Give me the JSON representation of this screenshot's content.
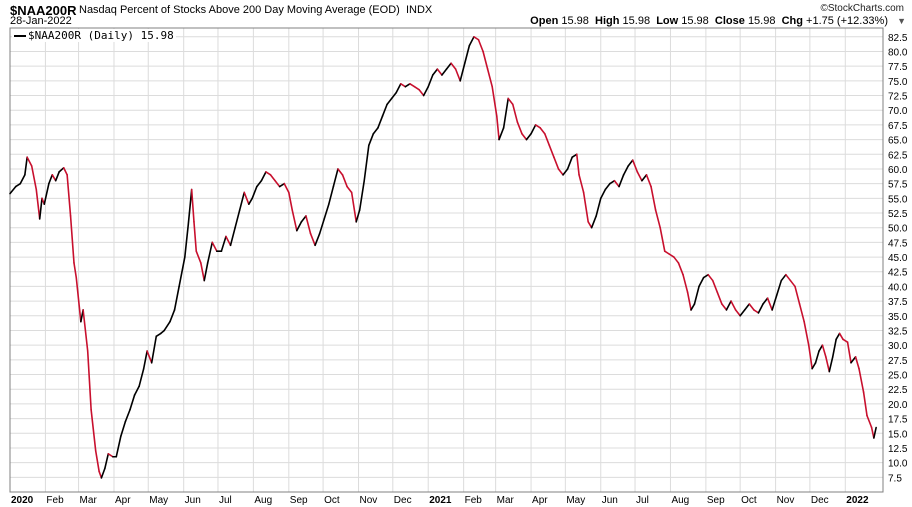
{
  "header": {
    "symbol": "$NAA200R",
    "description": "Nasdaq Percent of Stocks Above 200 Day Moving Average (EOD)",
    "exchange": "INDX",
    "date": "28-Jan-2022",
    "brand": "©StockCharts.com",
    "open_label": "Open",
    "open": "15.98",
    "high_label": "High",
    "high": "15.98",
    "low_label": "Low",
    "low": "15.98",
    "close_label": "Close",
    "close": "15.98",
    "chg_label": "Chg",
    "chg": "+1.75 (+12.33%)"
  },
  "legend": {
    "label": "$NAA200R (Daily) 15.98"
  },
  "chart_data": {
    "type": "line",
    "title": "$NAA200R Nasdaq Percent of Stocks Above 200 Day Moving Average (EOD) INDX",
    "y_axis_side": "right",
    "ylim": [
      5,
      84
    ],
    "yticks": [
      7.5,
      10,
      12.5,
      15,
      17.5,
      20,
      22.5,
      25,
      27.5,
      30,
      32.5,
      35,
      37.5,
      40,
      42.5,
      45,
      47.5,
      50,
      52.5,
      55,
      57.5,
      60,
      62.5,
      65,
      67.5,
      70,
      72.5,
      75,
      77.5,
      80,
      82.5
    ],
    "xlim": [
      "2020-01-01",
      "2022-02-03"
    ],
    "xticks": [
      {
        "date": "2020-01-01",
        "label": "2020",
        "bold": true
      },
      {
        "date": "2020-02-01",
        "label": "Feb"
      },
      {
        "date": "2020-03-01",
        "label": "Mar"
      },
      {
        "date": "2020-04-01",
        "label": "Apr"
      },
      {
        "date": "2020-05-01",
        "label": "May"
      },
      {
        "date": "2020-06-01",
        "label": "Jun"
      },
      {
        "date": "2020-07-01",
        "label": "Jul"
      },
      {
        "date": "2020-08-01",
        "label": "Aug"
      },
      {
        "date": "2020-09-01",
        "label": "Sep"
      },
      {
        "date": "2020-10-01",
        "label": "Oct"
      },
      {
        "date": "2020-11-01",
        "label": "Nov"
      },
      {
        "date": "2020-12-01",
        "label": "Dec"
      },
      {
        "date": "2021-01-01",
        "label": "2021",
        "bold": true
      },
      {
        "date": "2021-02-01",
        "label": "Feb"
      },
      {
        "date": "2021-03-01",
        "label": "Mar"
      },
      {
        "date": "2021-04-01",
        "label": "Apr"
      },
      {
        "date": "2021-05-01",
        "label": "May"
      },
      {
        "date": "2021-06-01",
        "label": "Jun"
      },
      {
        "date": "2021-07-01",
        "label": "Jul"
      },
      {
        "date": "2021-08-01",
        "label": "Aug"
      },
      {
        "date": "2021-09-01",
        "label": "Sep"
      },
      {
        "date": "2021-10-01",
        "label": "Oct"
      },
      {
        "date": "2021-11-01",
        "label": "Nov"
      },
      {
        "date": "2021-12-01",
        "label": "Dec"
      },
      {
        "date": "2022-01-01",
        "label": "2022",
        "bold": true
      }
    ],
    "grid": true,
    "colors": {
      "up": "#000000",
      "down": "#c8102e",
      "grid": "#dcdcdc"
    },
    "series": [
      {
        "name": "$NAA200R (Daily)",
        "points": [
          [
            "2020-01-01",
            55.8
          ],
          [
            "2020-01-06",
            57
          ],
          [
            "2020-01-10",
            57.5
          ],
          [
            "2020-01-14",
            59
          ],
          [
            "2020-01-16",
            62
          ],
          [
            "2020-01-20",
            60.5
          ],
          [
            "2020-01-24",
            56.5
          ],
          [
            "2020-01-27",
            51.5
          ],
          [
            "2020-01-29",
            55
          ],
          [
            "2020-01-31",
            54
          ],
          [
            "2020-02-04",
            57.5
          ],
          [
            "2020-02-07",
            59
          ],
          [
            "2020-02-10",
            58
          ],
          [
            "2020-02-13",
            59.5
          ],
          [
            "2020-02-17",
            60.2
          ],
          [
            "2020-02-20",
            59
          ],
          [
            "2020-02-23",
            52
          ],
          [
            "2020-02-26",
            44
          ],
          [
            "2020-02-28",
            41.5
          ],
          [
            "2020-03-03",
            34
          ],
          [
            "2020-03-05",
            36
          ],
          [
            "2020-03-09",
            29
          ],
          [
            "2020-03-12",
            19
          ],
          [
            "2020-03-16",
            12
          ],
          [
            "2020-03-19",
            8.5
          ],
          [
            "2020-03-21",
            7.4
          ],
          [
            "2020-03-24",
            9
          ],
          [
            "2020-03-27",
            11.5
          ],
          [
            "2020-03-31",
            11
          ],
          [
            "2020-04-03",
            11
          ],
          [
            "2020-04-07",
            14.5
          ],
          [
            "2020-04-11",
            17
          ],
          [
            "2020-04-15",
            19
          ],
          [
            "2020-04-19",
            21.5
          ],
          [
            "2020-04-23",
            23
          ],
          [
            "2020-04-27",
            26
          ],
          [
            "2020-04-30",
            29
          ],
          [
            "2020-05-04",
            27
          ],
          [
            "2020-05-08",
            31.5
          ],
          [
            "2020-05-12",
            32
          ],
          [
            "2020-05-15",
            32.5
          ],
          [
            "2020-05-20",
            34
          ],
          [
            "2020-05-24",
            36
          ],
          [
            "2020-05-28",
            40
          ],
          [
            "2020-06-02",
            45
          ],
          [
            "2020-06-05",
            50.5
          ],
          [
            "2020-06-08",
            56.5
          ],
          [
            "2020-06-10",
            51
          ],
          [
            "2020-06-12",
            46
          ],
          [
            "2020-06-16",
            44
          ],
          [
            "2020-06-19",
            41
          ],
          [
            "2020-06-22",
            44
          ],
          [
            "2020-06-26",
            47.5
          ],
          [
            "2020-06-30",
            46
          ],
          [
            "2020-07-04",
            46
          ],
          [
            "2020-07-08",
            48.5
          ],
          [
            "2020-07-12",
            47
          ],
          [
            "2020-07-16",
            50
          ],
          [
            "2020-07-20",
            53
          ],
          [
            "2020-07-24",
            56
          ],
          [
            "2020-07-28",
            54
          ],
          [
            "2020-07-31",
            55
          ],
          [
            "2020-08-04",
            57
          ],
          [
            "2020-08-08",
            58
          ],
          [
            "2020-08-12",
            59.5
          ],
          [
            "2020-08-16",
            59
          ],
          [
            "2020-08-20",
            58
          ],
          [
            "2020-08-24",
            57
          ],
          [
            "2020-08-28",
            57.5
          ],
          [
            "2020-09-01",
            56
          ],
          [
            "2020-09-04",
            53
          ],
          [
            "2020-09-08",
            49.5
          ],
          [
            "2020-09-12",
            51
          ],
          [
            "2020-09-16",
            52
          ],
          [
            "2020-09-20",
            49
          ],
          [
            "2020-09-24",
            47
          ],
          [
            "2020-09-28",
            49
          ],
          [
            "2020-10-02",
            51.5
          ],
          [
            "2020-10-06",
            54
          ],
          [
            "2020-10-10",
            57
          ],
          [
            "2020-10-14",
            60
          ],
          [
            "2020-10-18",
            59
          ],
          [
            "2020-10-22",
            57
          ],
          [
            "2020-10-26",
            56
          ],
          [
            "2020-10-30",
            51
          ],
          [
            "2020-11-02",
            53
          ],
          [
            "2020-11-06",
            58
          ],
          [
            "2020-11-10",
            64
          ],
          [
            "2020-11-14",
            66
          ],
          [
            "2020-11-18",
            67
          ],
          [
            "2020-11-22",
            69
          ],
          [
            "2020-11-26",
            71
          ],
          [
            "2020-11-30",
            72
          ],
          [
            "2020-12-04",
            73
          ],
          [
            "2020-12-08",
            74.5
          ],
          [
            "2020-12-12",
            74
          ],
          [
            "2020-12-16",
            74.5
          ],
          [
            "2020-12-20",
            74
          ],
          [
            "2020-12-24",
            73.5
          ],
          [
            "2020-12-28",
            72.5
          ],
          [
            "2021-01-01",
            74
          ],
          [
            "2021-01-05",
            76
          ],
          [
            "2021-01-09",
            77
          ],
          [
            "2021-01-13",
            76
          ],
          [
            "2021-01-17",
            77
          ],
          [
            "2021-01-21",
            78
          ],
          [
            "2021-01-25",
            77
          ],
          [
            "2021-01-29",
            75
          ],
          [
            "2021-02-02",
            78
          ],
          [
            "2021-02-06",
            81
          ],
          [
            "2021-02-10",
            82.5
          ],
          [
            "2021-02-14",
            82
          ],
          [
            "2021-02-18",
            80
          ],
          [
            "2021-02-22",
            77
          ],
          [
            "2021-02-26",
            74
          ],
          [
            "2021-03-02",
            69
          ],
          [
            "2021-03-04",
            65
          ],
          [
            "2021-03-08",
            67
          ],
          [
            "2021-03-12",
            72
          ],
          [
            "2021-03-16",
            71
          ],
          [
            "2021-03-20",
            68
          ],
          [
            "2021-03-24",
            66
          ],
          [
            "2021-03-28",
            65
          ],
          [
            "2021-04-01",
            66
          ],
          [
            "2021-04-05",
            67.5
          ],
          [
            "2021-04-09",
            67
          ],
          [
            "2021-04-13",
            66
          ],
          [
            "2021-04-17",
            64
          ],
          [
            "2021-04-21",
            62
          ],
          [
            "2021-04-25",
            60
          ],
          [
            "2021-04-29",
            59
          ],
          [
            "2021-05-03",
            60
          ],
          [
            "2021-05-07",
            62
          ],
          [
            "2021-05-11",
            62.5
          ],
          [
            "2021-05-13",
            59
          ],
          [
            "2021-05-17",
            56
          ],
          [
            "2021-05-21",
            51
          ],
          [
            "2021-05-24",
            50
          ],
          [
            "2021-05-28",
            52
          ],
          [
            "2021-06-01",
            55
          ],
          [
            "2021-06-05",
            56.5
          ],
          [
            "2021-06-09",
            57.5
          ],
          [
            "2021-06-13",
            58
          ],
          [
            "2021-06-17",
            57
          ],
          [
            "2021-06-21",
            59
          ],
          [
            "2021-06-25",
            60.5
          ],
          [
            "2021-06-29",
            61.5
          ],
          [
            "2021-07-03",
            59.5
          ],
          [
            "2021-07-07",
            58
          ],
          [
            "2021-07-11",
            59
          ],
          [
            "2021-07-15",
            57
          ],
          [
            "2021-07-19",
            53
          ],
          [
            "2021-07-23",
            50
          ],
          [
            "2021-07-27",
            46
          ],
          [
            "2021-07-31",
            45.5
          ],
          [
            "2021-08-04",
            45
          ],
          [
            "2021-08-08",
            44
          ],
          [
            "2021-08-12",
            42
          ],
          [
            "2021-08-16",
            39
          ],
          [
            "2021-08-19",
            36
          ],
          [
            "2021-08-22",
            37
          ],
          [
            "2021-08-26",
            40
          ],
          [
            "2021-08-30",
            41.5
          ],
          [
            "2021-09-03",
            42
          ],
          [
            "2021-09-07",
            41
          ],
          [
            "2021-09-11",
            39
          ],
          [
            "2021-09-15",
            37
          ],
          [
            "2021-09-19",
            36
          ],
          [
            "2021-09-23",
            37.5
          ],
          [
            "2021-09-27",
            36
          ],
          [
            "2021-10-01",
            35
          ],
          [
            "2021-10-05",
            36
          ],
          [
            "2021-10-09",
            37
          ],
          [
            "2021-10-13",
            36
          ],
          [
            "2021-10-17",
            35.5
          ],
          [
            "2021-10-21",
            37
          ],
          [
            "2021-10-25",
            38
          ],
          [
            "2021-10-29",
            36
          ],
          [
            "2021-11-02",
            38.5
          ],
          [
            "2021-11-06",
            41
          ],
          [
            "2021-11-10",
            42
          ],
          [
            "2021-11-14",
            41
          ],
          [
            "2021-11-18",
            40
          ],
          [
            "2021-11-22",
            37
          ],
          [
            "2021-11-26",
            34
          ],
          [
            "2021-11-30",
            30
          ],
          [
            "2021-12-03",
            26
          ],
          [
            "2021-12-06",
            27
          ],
          [
            "2021-12-09",
            29
          ],
          [
            "2021-12-12",
            30
          ],
          [
            "2021-12-15",
            28
          ],
          [
            "2021-12-18",
            25.5
          ],
          [
            "2021-12-21",
            28
          ],
          [
            "2021-12-24",
            31
          ],
          [
            "2021-12-27",
            32
          ],
          [
            "2021-12-30",
            31
          ],
          [
            "2022-01-03",
            30.5
          ],
          [
            "2022-01-06",
            27
          ],
          [
            "2022-01-10",
            28
          ],
          [
            "2022-01-13",
            26
          ],
          [
            "2022-01-17",
            22
          ],
          [
            "2022-01-20",
            18
          ],
          [
            "2022-01-24",
            16
          ],
          [
            "2022-01-26",
            14.2
          ],
          [
            "2022-01-28",
            15.98
          ]
        ]
      }
    ]
  }
}
